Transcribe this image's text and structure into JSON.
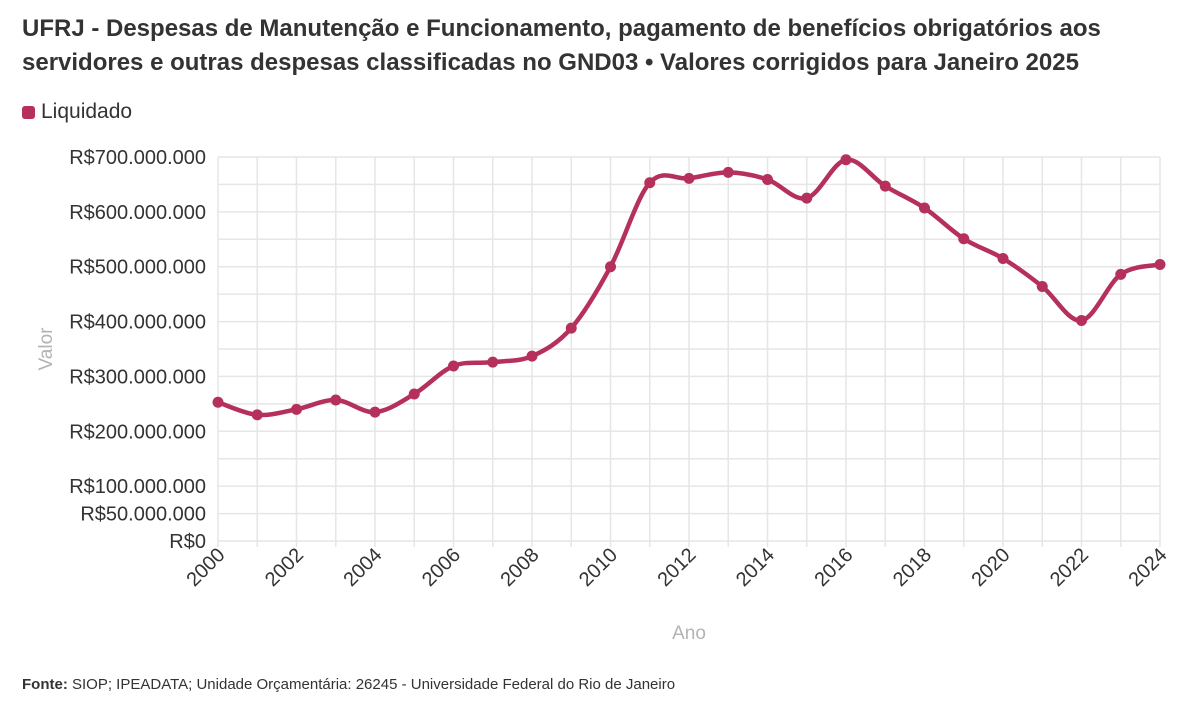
{
  "title": "UFRJ - Despesas de Manutenção e Funcionamento, pagamento de benefícios obrigatórios aos servidores e outras despesas classificadas no GND03 • Valores corrigidos para Janeiro 2025",
  "footer": {
    "label": "Fonte:",
    "text": " SIOP; IPEADATA; Unidade Orçamentária: 26245 - Universidade Federal do Rio de Janeiro"
  },
  "colors": {
    "series": "#b5305a",
    "grid": "#e6e6e6",
    "axis_title": "#b3b3b3",
    "text": "#333333"
  },
  "chart_data": {
    "type": "line",
    "xlabel": "Ano",
    "ylabel": "Valor",
    "ylim": [
      0,
      700000000
    ],
    "xlim": [
      2000,
      2024
    ],
    "grid": true,
    "legend_position": "top-left",
    "y_ticks": [
      {
        "value": 0,
        "label": "R$0"
      },
      {
        "value": 50000000,
        "label": "R$50.000.000"
      },
      {
        "value": 100000000,
        "label": "R$100.000.000"
      },
      {
        "value": 200000000,
        "label": "R$200.000.000"
      },
      {
        "value": 300000000,
        "label": "R$300.000.000"
      },
      {
        "value": 400000000,
        "label": "R$400.000.000"
      },
      {
        "value": 500000000,
        "label": "R$500.000.000"
      },
      {
        "value": 600000000,
        "label": "R$600.000.000"
      },
      {
        "value": 700000000,
        "label": "R$700.000.000"
      }
    ],
    "x_tick_labels": [
      "2000",
      "2002",
      "2004",
      "2006",
      "2008",
      "2010",
      "2012",
      "2014",
      "2016",
      "2018",
      "2020",
      "2022",
      "2024"
    ],
    "x": [
      2000,
      2001,
      2002,
      2003,
      2004,
      2005,
      2006,
      2007,
      2008,
      2009,
      2010,
      2011,
      2012,
      2013,
      2014,
      2015,
      2016,
      2017,
      2018,
      2019,
      2020,
      2021,
      2022,
      2023,
      2024
    ],
    "series": [
      {
        "name": "Liquidado",
        "values": [
          253000000,
          230000000,
          240000000,
          257000000,
          235000000,
          268000000,
          319000000,
          326000000,
          337000000,
          388000000,
          500000000,
          653000000,
          661000000,
          672000000,
          659000000,
          625000000,
          695000000,
          647000000,
          607000000,
          551000000,
          515000000,
          464000000,
          402000000,
          486000000,
          504000000
        ]
      }
    ]
  }
}
